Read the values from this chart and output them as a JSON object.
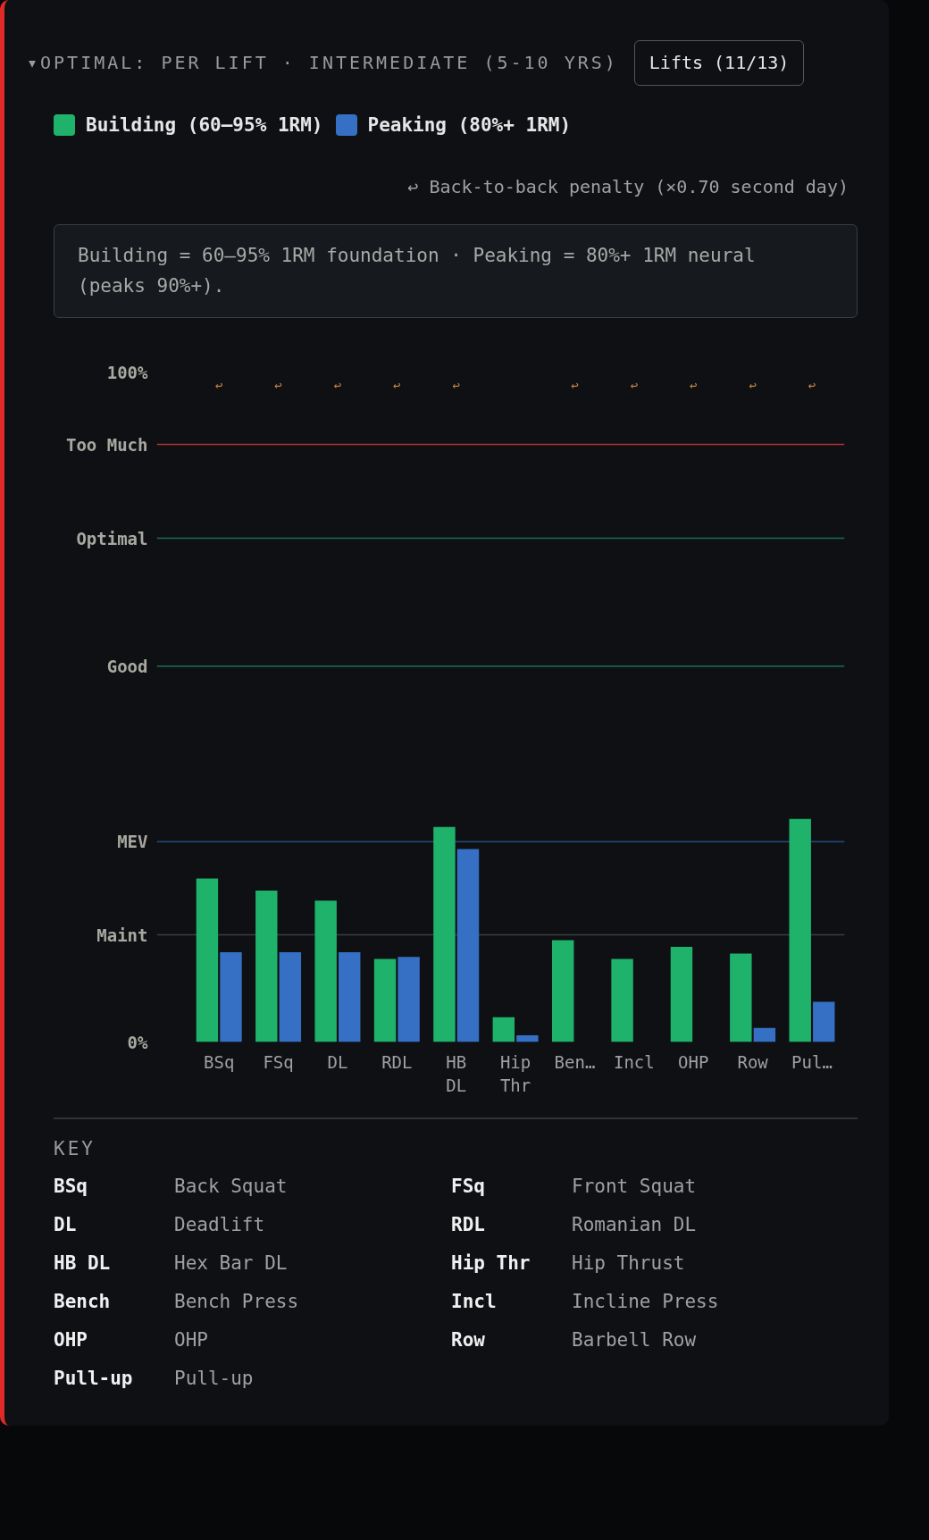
{
  "chart_data": {
    "type": "bar",
    "title": "▾OPTIMAL: PER LIFT · INTERMEDIATE (5-10 YRS)",
    "categories": [
      "BSq",
      "FSq",
      "DL",
      "RDL",
      "HB DL",
      "Hip Thr",
      "Ben…",
      "Incl",
      "OHP",
      "Row",
      "Pul…"
    ],
    "series": [
      {
        "name": "Building (60–95% 1RM)",
        "color": "#1fb26b",
        "values": [
          24.4,
          22.6,
          21.1,
          12.4,
          32.1,
          3.7,
          15.2,
          12.4,
          14.2,
          13.2,
          33.3
        ]
      },
      {
        "name": "Peaking (80%+ 1RM)",
        "color": "#3570c4",
        "values": [
          13.4,
          13.4,
          13.4,
          12.7,
          28.8,
          1.0,
          null,
          null,
          null,
          2.1,
          6.0
        ]
      }
    ],
    "ylim": [
      0,
      100
    ],
    "yticks": [
      {
        "value": 0,
        "label": "0%"
      },
      {
        "value": 100,
        "label": "100%"
      }
    ],
    "ref_lines": [
      {
        "axis": "y",
        "value": 89.2,
        "label": "Too Much",
        "color": "#e03b3b"
      },
      {
        "axis": "y",
        "value": 75.2,
        "label": "Optimal",
        "color": "#1e8a55"
      },
      {
        "axis": "y",
        "value": 56.1,
        "label": "Good",
        "color": "#1e8a55"
      },
      {
        "axis": "y",
        "value": 29.9,
        "label": "MEV",
        "color": "#2e5a9e"
      },
      {
        "axis": "y",
        "value": 16.0,
        "label": "Maint",
        "color": "#4a4a4a"
      }
    ],
    "annotations": [
      "Lifts (11/13)",
      "↩ Back-to-back penalty (×0.70 second day)",
      "Building = 60–95% 1RM foundation · Peaking = 80%+ 1RM neural (peaks 90%+).",
      "KEY",
      "BSq",
      "Back Squat",
      "FSq",
      "Front Squat",
      "DL",
      "Deadlift",
      "RDL",
      "Romanian DL",
      "HB DL",
      "Hex Bar DL",
      "Hip Thr",
      "Hip Thrust",
      "Bench",
      "Bench Press",
      "Incl",
      "Incline Press",
      "OHP",
      "OHP",
      "Row",
      "Barbell Row",
      "Pull-up",
      "Pull-up",
      "↩",
      "↩",
      "↩",
      "↩",
      "↩",
      "↩",
      "↩",
      "↩",
      "↩",
      "↩"
    ],
    "grid": false,
    "legend": "top left"
  }
}
